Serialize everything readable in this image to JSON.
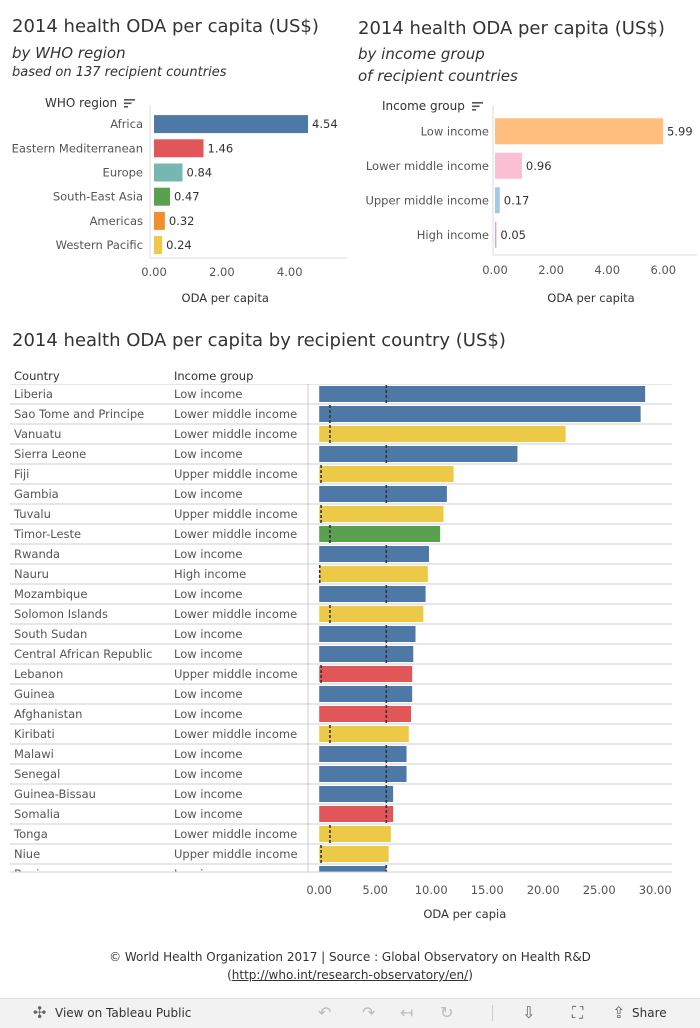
{
  "region_panel": {
    "title": "2014 health ODA per capita (US$)",
    "subtitle": "by WHO region",
    "subtitle2": "based on 137 recipient countries",
    "header": "WHO region",
    "axis_title": "ODA per capita"
  },
  "income_panel": {
    "title": "2014 health ODA per capita (US$)",
    "subtitle": "by income group",
    "subtitle2": "of recipient countries",
    "header": "Income group",
    "axis_title": "ODA per capita"
  },
  "country_panel": {
    "title": "2014 health ODA per capita by recipient country (US$)",
    "col_country": "Country",
    "col_income": "Income group",
    "axis_title": "ODA per capia"
  },
  "footer": {
    "line1": "© World Health Organization 2017 | Source : Global Observatory on Health R&D",
    "link": "http://who.int/research-observatory/en/"
  },
  "toolbar": {
    "view_label": "View on Tableau Public",
    "share_label": "Share"
  },
  "colors": {
    "Africa": "#4e79a7",
    "Eastern Mediterranean": "#e15759",
    "Europe": "#76b7b2",
    "South-East Asia": "#59a14f",
    "Americas": "#f28e2b",
    "Western Pacific": "#edc948",
    "Low income": "#ffbe7d",
    "Lower middle income": "#fabfd2",
    "Upper middle income": "#a0cbe8",
    "High income": "#d4a6c8"
  },
  "chart_data": [
    {
      "type": "bar",
      "orientation": "horizontal",
      "categories": [
        "Africa",
        "Eastern Mediterranean",
        "Europe",
        "South-East Asia",
        "Americas",
        "Western Pacific"
      ],
      "values": [
        4.54,
        1.46,
        0.84,
        0.47,
        0.32,
        0.24
      ],
      "data_labels": [
        "4.54",
        "1.46",
        "0.84",
        "0.47",
        "0.32",
        "0.24"
      ],
      "xlabel": "ODA per capita",
      "xlim": [
        0,
        5.6
      ],
      "xticks": [
        0,
        2,
        4
      ],
      "xtick_labels": [
        "0.00",
        "2.00",
        "4.00"
      ],
      "grid": false
    },
    {
      "type": "bar",
      "orientation": "horizontal",
      "categories": [
        "Low income",
        "Lower middle income",
        "Upper middle income",
        "High income"
      ],
      "values": [
        5.99,
        0.96,
        0.17,
        0.05
      ],
      "data_labels": [
        "5.99",
        "0.96",
        "0.17",
        "0.05"
      ],
      "xlabel": "ODA per capita",
      "xlim": [
        0,
        7.2
      ],
      "xticks": [
        0,
        2,
        4,
        6
      ],
      "xtick_labels": [
        "0.00",
        "2.00",
        "4.00",
        "6.00"
      ],
      "grid": false
    },
    {
      "type": "bar",
      "orientation": "horizontal",
      "xlabel": "ODA per capia",
      "xlim": [
        -1,
        31.5
      ],
      "xticks": [
        0,
        5,
        10,
        15,
        20,
        25,
        30
      ],
      "xtick_labels": [
        "0.00",
        "5.00",
        "10.00",
        "15.00",
        "20.00",
        "25.00",
        "30.00"
      ],
      "grid": false,
      "reference_lines_note": "dashed reference line per row at income-group average",
      "rows": [
        {
          "country": "Liberia",
          "income": "Low income",
          "value": 29.1,
          "region": "Africa",
          "ref": 5.99
        },
        {
          "country": "Sao Tome and Principe",
          "income": "Lower middle income",
          "value": 28.7,
          "region": "Africa",
          "ref": 0.96
        },
        {
          "country": "Vanuatu",
          "income": "Lower middle income",
          "value": 22.0,
          "region": "Western Pacific",
          "ref": 0.96
        },
        {
          "country": "Sierra Leone",
          "income": "Low income",
          "value": 17.7,
          "region": "Africa",
          "ref": 5.99
        },
        {
          "country": "Fiji",
          "income": "Upper middle income",
          "value": 12.0,
          "region": "Western Pacific",
          "ref": 0.17
        },
        {
          "country": "Gambia",
          "income": "Low income",
          "value": 11.4,
          "region": "Africa",
          "ref": 5.99
        },
        {
          "country": "Tuvalu",
          "income": "Upper middle income",
          "value": 11.1,
          "region": "Western Pacific",
          "ref": 0.17
        },
        {
          "country": "Timor-Leste",
          "income": "Lower middle income",
          "value": 10.8,
          "region": "South-East Asia",
          "ref": 0.96
        },
        {
          "country": "Rwanda",
          "income": "Low income",
          "value": 9.8,
          "region": "Africa",
          "ref": 5.99
        },
        {
          "country": "Nauru",
          "income": "High income",
          "value": 9.7,
          "region": "Western Pacific",
          "ref": 0.05
        },
        {
          "country": "Mozambique",
          "income": "Low income",
          "value": 9.5,
          "region": "Africa",
          "ref": 5.99
        },
        {
          "country": "Solomon Islands",
          "income": "Lower middle income",
          "value": 9.3,
          "region": "Western Pacific",
          "ref": 0.96
        },
        {
          "country": "South Sudan",
          "income": "Low income",
          "value": 8.6,
          "region": "Africa",
          "ref": 5.99
        },
        {
          "country": "Central African Republic",
          "income": "Low income",
          "value": 8.4,
          "region": "Africa",
          "ref": 5.99
        },
        {
          "country": "Lebanon",
          "income": "Upper middle income",
          "value": 8.3,
          "region": "Eastern Mediterranean",
          "ref": 0.17
        },
        {
          "country": "Guinea",
          "income": "Low income",
          "value": 8.3,
          "region": "Africa",
          "ref": 5.99
        },
        {
          "country": "Afghanistan",
          "income": "Low income",
          "value": 8.2,
          "region": "Eastern Mediterranean",
          "ref": 5.99
        },
        {
          "country": "Kiribati",
          "income": "Lower middle income",
          "value": 8.0,
          "region": "Western Pacific",
          "ref": 0.96
        },
        {
          "country": "Malawi",
          "income": "Low income",
          "value": 7.8,
          "region": "Africa",
          "ref": 5.99
        },
        {
          "country": "Senegal",
          "income": "Low income",
          "value": 7.8,
          "region": "Africa",
          "ref": 5.99
        },
        {
          "country": "Guinea-Bissau",
          "income": "Low income",
          "value": 6.6,
          "region": "Africa",
          "ref": 5.99
        },
        {
          "country": "Somalia",
          "income": "Low income",
          "value": 6.6,
          "region": "Eastern Mediterranean",
          "ref": 5.99
        },
        {
          "country": "Tonga",
          "income": "Lower middle income",
          "value": 6.4,
          "region": "Western Pacific",
          "ref": 0.96
        },
        {
          "country": "Niue",
          "income": "Upper middle income",
          "value": 6.2,
          "region": "Western Pacific",
          "ref": 0.17
        },
        {
          "country": "Benin",
          "income": "Low income",
          "value": 6.0,
          "region": "Africa",
          "ref": 5.99
        }
      ]
    }
  ]
}
